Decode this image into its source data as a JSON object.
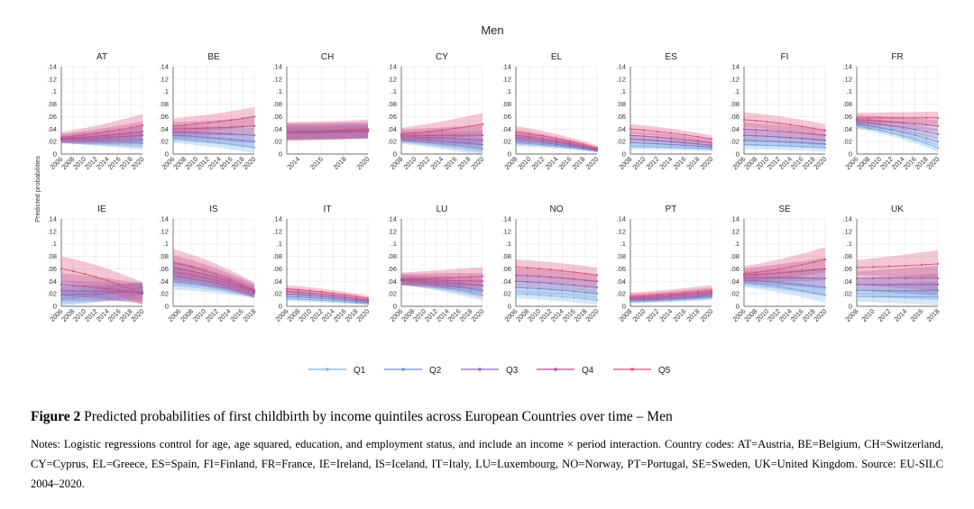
{
  "chart_data": {
    "type": "line",
    "title": "Men",
    "ylabel": "Predicted probabilities",
    "ylim": [
      0,
      0.14
    ],
    "yticks": [
      ".14",
      ".12",
      ".1",
      ".08",
      ".06",
      ".04",
      ".02",
      "0"
    ],
    "ytick_values": [
      0.14,
      0.12,
      0.1,
      0.08,
      0.06,
      0.04,
      0.02,
      0
    ],
    "series_colors": {
      "Q1": "#7eb6e8",
      "Q2": "#6f8fd6",
      "Q3": "#8a67b8",
      "Q4": "#b04f9a",
      "Q5": "#d9507a"
    },
    "legend": [
      {
        "name": "Q1",
        "color": "#7eb6e8"
      },
      {
        "name": "Q2",
        "color": "#6f8fd6"
      },
      {
        "name": "Q3",
        "color": "#8a67b8"
      },
      {
        "name": "Q4",
        "color": "#b04f9a"
      },
      {
        "name": "Q5",
        "color": "#d9507a"
      }
    ],
    "panels": [
      {
        "country": "AT",
        "x": [
          2006,
          2008,
          2010,
          2012,
          2014,
          2016,
          2018,
          2020
        ],
        "xrange": [
          2006,
          2020
        ],
        "q_start": [
          0.022,
          0.023,
          0.024,
          0.025,
          0.027
        ],
        "q_end": [
          0.018,
          0.023,
          0.03,
          0.036,
          0.046
        ],
        "bw_start": 0.008,
        "bw_end": 0.018
      },
      {
        "country": "BE",
        "x": [
          2006,
          2008,
          2010,
          2012,
          2014,
          2016,
          2018,
          2020
        ],
        "xrange": [
          2006,
          2020
        ],
        "q_start": [
          0.025,
          0.03,
          0.035,
          0.04,
          0.045
        ],
        "q_end": [
          0.01,
          0.02,
          0.03,
          0.045,
          0.06
        ],
        "bw_start": 0.012,
        "bw_end": 0.015
      },
      {
        "country": "CH",
        "x": [
          2014,
          2016,
          2018,
          2020
        ],
        "xrange": [
          2013,
          2020
        ],
        "q_start": [
          0.033,
          0.034,
          0.035,
          0.036,
          0.036
        ],
        "q_end": [
          0.035,
          0.036,
          0.037,
          0.038,
          0.04
        ],
        "bw_start": 0.015,
        "bw_end": 0.015
      },
      {
        "country": "CY",
        "x": [
          2008,
          2010,
          2012,
          2014,
          2016,
          2018,
          2020
        ],
        "xrange": [
          2008,
          2020
        ],
        "q_start": [
          0.022,
          0.025,
          0.028,
          0.03,
          0.032
        ],
        "q_end": [
          0.008,
          0.015,
          0.022,
          0.03,
          0.048
        ],
        "bw_start": 0.01,
        "bw_end": 0.018
      },
      {
        "country": "EL",
        "x": [
          2008,
          2010,
          2012,
          2014,
          2016,
          2018,
          2020
        ],
        "xrange": [
          2008,
          2020
        ],
        "q_start": [
          0.018,
          0.022,
          0.026,
          0.03,
          0.035
        ],
        "q_end": [
          0.005,
          0.006,
          0.007,
          0.008,
          0.01
        ],
        "bw_start": 0.01,
        "bw_end": 0.004
      },
      {
        "country": "ES",
        "x": [
          2008,
          2010,
          2012,
          2014,
          2016,
          2018,
          2020
        ],
        "xrange": [
          2008,
          2020
        ],
        "q_start": [
          0.012,
          0.018,
          0.024,
          0.03,
          0.04
        ],
        "q_end": [
          0.008,
          0.011,
          0.014,
          0.018,
          0.024
        ],
        "bw_start": 0.008,
        "bw_end": 0.006
      },
      {
        "country": "FI",
        "x": [
          2006,
          2008,
          2010,
          2012,
          2014,
          2016,
          2018,
          2020
        ],
        "xrange": [
          2006,
          2020
        ],
        "q_start": [
          0.015,
          0.022,
          0.03,
          0.04,
          0.055
        ],
        "q_end": [
          0.01,
          0.016,
          0.022,
          0.03,
          0.038
        ],
        "bw_start": 0.012,
        "bw_end": 0.01
      },
      {
        "country": "FR",
        "x": [
          2006,
          2008,
          2010,
          2012,
          2014,
          2016,
          2018,
          2020
        ],
        "xrange": [
          2006,
          2020
        ],
        "q_start": [
          0.045,
          0.048,
          0.052,
          0.055,
          0.058
        ],
        "q_end": [
          0.01,
          0.02,
          0.032,
          0.045,
          0.058
        ],
        "bw_start": 0.008,
        "bw_end": 0.01
      },
      {
        "country": "IE",
        "x": [
          2006,
          2008,
          2010,
          2012,
          2014,
          2016,
          2018,
          2020
        ],
        "xrange": [
          2006,
          2020
        ],
        "q_start": [
          0.012,
          0.018,
          0.025,
          0.035,
          0.06
        ],
        "q_end": [
          0.03,
          0.025,
          0.022,
          0.02,
          0.02
        ],
        "bw_start": 0.02,
        "bw_end": 0.018
      },
      {
        "country": "IS",
        "x": [
          2006,
          2008,
          2010,
          2012,
          2014,
          2016,
          2018
        ],
        "xrange": [
          2005,
          2018
        ],
        "q_start": [
          0.04,
          0.048,
          0.055,
          0.062,
          0.07
        ],
        "q_end": [
          0.02,
          0.022,
          0.024,
          0.025,
          0.026
        ],
        "bw_start": 0.022,
        "bw_end": 0.012
      },
      {
        "country": "IT",
        "x": [
          2006,
          2008,
          2010,
          2012,
          2014,
          2016,
          2018,
          2020
        ],
        "xrange": [
          2006,
          2020
        ],
        "q_start": [
          0.012,
          0.016,
          0.02,
          0.024,
          0.028
        ],
        "q_end": [
          0.004,
          0.006,
          0.008,
          0.01,
          0.013
        ],
        "bw_start": 0.006,
        "bw_end": 0.004
      },
      {
        "country": "LU",
        "x": [
          2006,
          2008,
          2010,
          2012,
          2014,
          2016,
          2018,
          2020
        ],
        "xrange": [
          2006,
          2020
        ],
        "q_start": [
          0.04,
          0.041,
          0.042,
          0.043,
          0.044
        ],
        "q_end": [
          0.018,
          0.025,
          0.033,
          0.04,
          0.048
        ],
        "bw_start": 0.01,
        "bw_end": 0.015
      },
      {
        "country": "NO",
        "x": [
          2006,
          2008,
          2010,
          2012,
          2014,
          2016,
          2018,
          2020
        ],
        "xrange": [
          2006,
          2020
        ],
        "q_start": [
          0.02,
          0.03,
          0.04,
          0.05,
          0.063
        ],
        "q_end": [
          0.01,
          0.02,
          0.03,
          0.04,
          0.05
        ],
        "bw_start": 0.012,
        "bw_end": 0.012
      },
      {
        "country": "PT",
        "x": [
          2008,
          2010,
          2012,
          2014,
          2016,
          2018,
          2020
        ],
        "xrange": [
          2008,
          2020
        ],
        "q_start": [
          0.008,
          0.01,
          0.012,
          0.014,
          0.016
        ],
        "q_end": [
          0.015,
          0.017,
          0.02,
          0.023,
          0.026
        ],
        "bw_start": 0.006,
        "bw_end": 0.008
      },
      {
        "country": "SE",
        "x": [
          2006,
          2008,
          2010,
          2012,
          2014,
          2016,
          2018,
          2020
        ],
        "xrange": [
          2006,
          2020
        ],
        "q_start": [
          0.038,
          0.042,
          0.046,
          0.05,
          0.052
        ],
        "q_end": [
          0.018,
          0.03,
          0.045,
          0.06,
          0.075
        ],
        "bw_start": 0.012,
        "bw_end": 0.02
      },
      {
        "country": "UK",
        "x": [
          2008,
          2010,
          2012,
          2014,
          2016,
          2018
        ],
        "xrange": [
          2008,
          2018
        ],
        "q_start": [
          0.015,
          0.025,
          0.035,
          0.045,
          0.062
        ],
        "q_end": [
          0.015,
          0.025,
          0.035,
          0.045,
          0.068
        ],
        "bw_start": 0.012,
        "bw_end": 0.022
      }
    ]
  },
  "caption": {
    "label": "Figure 2",
    "text": " Predicted probabilities of first childbirth by income quintiles across European Countries over time – Men"
  },
  "notes": "Notes: Logistic regressions control for age, age squared, education, and employment status, and include an income × period interaction. Country codes: AT=Austria, BE=Belgium, CH=Switzerland, CY=Cyprus, EL=Greece, ES=Spain, FI=Finland, FR=France, IE=Ireland, IS=Iceland, IT=Italy, LU=Luxembourg, NO=Norway, PT=Portugal, SE=Sweden, UK=United Kingdom. Source: EU-SILC 2004–2020."
}
